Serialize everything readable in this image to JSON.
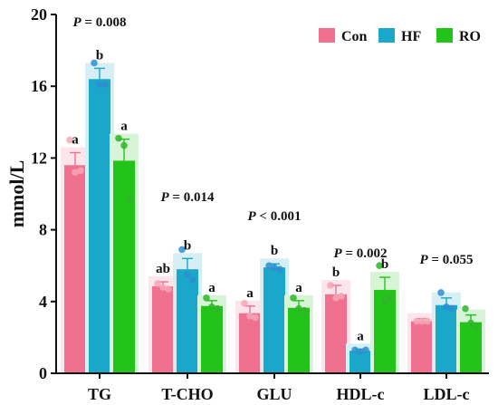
{
  "chart_data": {
    "type": "bar",
    "title": "",
    "xlabel": "",
    "ylabel": "mmol/L",
    "ylim": [
      0,
      20
    ],
    "yticks": [
      0,
      4,
      8,
      12,
      16,
      20
    ],
    "grid": false,
    "legend_position": "top-right",
    "colors": {
      "Con": "#f0708f",
      "HF": "#1aa7c9",
      "RO": "#22c41a"
    },
    "marker_colors": {
      "Con": "#f4a6b6",
      "HF": "#2e8fd0",
      "RO": "#2fb52a"
    },
    "categories": [
      "TG",
      "T-CHO",
      "GLU",
      "HDL-c",
      "LDL-c"
    ],
    "series": [
      {
        "name": "Con",
        "values": [
          11.6,
          4.85,
          3.35,
          4.4,
          2.9
        ],
        "errors": [
          0.7,
          0.25,
          0.4,
          0.5,
          0.15
        ],
        "letters": [
          "a",
          "ab",
          "a",
          "b",
          ""
        ],
        "points": [
          [
            13.0,
            11.2,
            11.3
          ],
          [
            5.0,
            4.8,
            4.7
          ],
          [
            3.9,
            3.2,
            3.1
          ],
          [
            4.9,
            4.2,
            4.3
          ],
          [
            2.9,
            2.9,
            2.9
          ]
        ]
      },
      {
        "name": "HF",
        "values": [
          16.4,
          5.8,
          5.9,
          1.25,
          3.8
        ],
        "errors": [
          0.6,
          0.6,
          0.2,
          0.1,
          0.4
        ],
        "letters": [
          "b",
          "b",
          "b",
          "a",
          ""
        ],
        "points": [
          [
            17.3,
            16.1,
            16.1
          ],
          [
            6.9,
            5.5,
            5.2
          ],
          [
            6.0,
            5.9,
            5.8
          ],
          [
            1.3,
            1.2,
            1.3
          ],
          [
            4.5,
            3.7,
            3.6
          ]
        ]
      },
      {
        "name": "RO",
        "values": [
          11.85,
          3.75,
          3.65,
          4.65,
          2.85
        ],
        "errors": [
          1.2,
          0.3,
          0.4,
          0.7,
          0.4
        ],
        "letters": [
          "a",
          "a",
          "a",
          "b",
          ""
        ],
        "points": [
          [
            13.1,
            12.7,
            9.7
          ],
          [
            4.2,
            3.7,
            3.6
          ],
          [
            4.2,
            3.6,
            3.5
          ],
          [
            6.0,
            4.0,
            4.2
          ],
          [
            3.6,
            2.8,
            2.6
          ]
        ]
      }
    ],
    "p_values": [
      {
        "category": "TG",
        "text": "P = 0.008"
      },
      {
        "category": "T-CHO",
        "text": "P = 0.014"
      },
      {
        "category": "GLU",
        "text": "P < 0.001"
      },
      {
        "category": "HDL-c",
        "text": "P = 0.002"
      },
      {
        "category": "LDL-c",
        "text": "P = 0.055"
      }
    ]
  }
}
